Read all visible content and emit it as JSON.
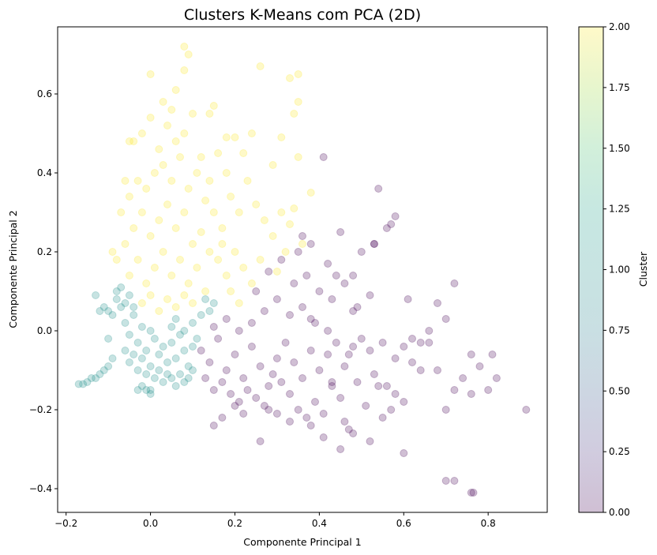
{
  "chart_data": {
    "type": "scatter",
    "title": "Clusters K-Means com PCA (2D)",
    "xlabel": "Componente Principal 1",
    "ylabel": "Componente Principal 2",
    "xlim": [
      -0.22,
      0.94
    ],
    "ylim": [
      -0.46,
      0.77
    ],
    "xticks": [
      -0.2,
      0.0,
      0.2,
      0.4,
      0.6,
      0.8
    ],
    "xtick_labels": [
      "−0.2",
      "0.0",
      "0.2",
      "0.4",
      "0.6",
      "0.8"
    ],
    "yticks": [
      -0.4,
      -0.2,
      0.0,
      0.2,
      0.4,
      0.6
    ],
    "ytick_labels": [
      "−0.4",
      "−0.2",
      "0.0",
      "0.2",
      "0.4",
      "0.6"
    ],
    "grid": false,
    "marker_alpha": 0.25,
    "colormap": "viridis",
    "colorbar": {
      "label": "Cluster",
      "range": [
        0.0,
        2.0
      ],
      "ticks": [
        0.0,
        0.25,
        0.5,
        0.75,
        1.0,
        1.25,
        1.5,
        1.75,
        2.0
      ],
      "tick_labels": [
        "0.00",
        "0.25",
        "0.50",
        "0.75",
        "1.00",
        "1.25",
        "1.50",
        "1.75",
        "2.00"
      ]
    },
    "series": [
      {
        "cluster": 0,
        "color": "#440154",
        "points": [
          [
            0.12,
            -0.05
          ],
          [
            0.14,
            -0.08
          ],
          [
            0.16,
            -0.02
          ],
          [
            0.18,
            -0.1
          ],
          [
            0.2,
            -0.06
          ],
          [
            0.22,
            -0.12
          ],
          [
            0.24,
            -0.04
          ],
          [
            0.26,
            -0.09
          ],
          [
            0.28,
            -0.14
          ],
          [
            0.3,
            -0.07
          ],
          [
            0.13,
            -0.12
          ],
          [
            0.15,
            -0.15
          ],
          [
            0.17,
            -0.13
          ],
          [
            0.19,
            -0.16
          ],
          [
            0.21,
            -0.18
          ],
          [
            0.23,
            -0.15
          ],
          [
            0.25,
            -0.17
          ],
          [
            0.27,
            -0.19
          ],
          [
            0.29,
            -0.11
          ],
          [
            0.31,
            -0.13
          ],
          [
            0.15,
            0.01
          ],
          [
            0.18,
            0.03
          ],
          [
            0.21,
            0.0
          ],
          [
            0.24,
            0.02
          ],
          [
            0.27,
            0.05
          ],
          [
            0.3,
            0.08
          ],
          [
            0.33,
            0.04
          ],
          [
            0.36,
            0.06
          ],
          [
            0.39,
            0.02
          ],
          [
            0.42,
            0.0
          ],
          [
            0.32,
            -0.03
          ],
          [
            0.34,
            -0.08
          ],
          [
            0.36,
            -0.12
          ],
          [
            0.38,
            -0.05
          ],
          [
            0.4,
            -0.1
          ],
          [
            0.42,
            -0.06
          ],
          [
            0.44,
            -0.03
          ],
          [
            0.46,
            -0.09
          ],
          [
            0.48,
            -0.04
          ],
          [
            0.5,
            -0.02
          ],
          [
            0.33,
            -0.16
          ],
          [
            0.35,
            -0.2
          ],
          [
            0.37,
            -0.22
          ],
          [
            0.39,
            -0.18
          ],
          [
            0.41,
            -0.21
          ],
          [
            0.43,
            -0.14
          ],
          [
            0.45,
            -0.17
          ],
          [
            0.47,
            -0.25
          ],
          [
            0.49,
            -0.13
          ],
          [
            0.51,
            -0.19
          ],
          [
            0.25,
            0.1
          ],
          [
            0.28,
            0.15
          ],
          [
            0.31,
            0.18
          ],
          [
            0.34,
            0.12
          ],
          [
            0.37,
            0.14
          ],
          [
            0.4,
            0.1
          ],
          [
            0.43,
            0.08
          ],
          [
            0.46,
            0.12
          ],
          [
            0.49,
            0.06
          ],
          [
            0.52,
            0.09
          ],
          [
            0.35,
            0.2
          ],
          [
            0.38,
            0.22
          ],
          [
            0.42,
            0.17
          ],
          [
            0.45,
            0.25
          ],
          [
            0.48,
            0.14
          ],
          [
            0.5,
            0.2
          ],
          [
            0.53,
            0.22
          ],
          [
            0.56,
            0.26
          ],
          [
            0.58,
            0.29
          ],
          [
            0.54,
            0.36
          ],
          [
            0.52,
            -0.05
          ],
          [
            0.55,
            -0.03
          ],
          [
            0.58,
            -0.07
          ],
          [
            0.6,
            -0.04
          ],
          [
            0.62,
            -0.02
          ],
          [
            0.64,
            -0.03
          ],
          [
            0.66,
            0.0
          ],
          [
            0.68,
            0.07
          ],
          [
            0.7,
            0.03
          ],
          [
            0.72,
            0.12
          ],
          [
            0.53,
            -0.11
          ],
          [
            0.56,
            -0.14
          ],
          [
            0.58,
            -0.16
          ],
          [
            0.6,
            -0.18
          ],
          [
            0.62,
            -0.08
          ],
          [
            0.64,
            -0.1
          ],
          [
            0.66,
            -0.03
          ],
          [
            0.68,
            -0.1
          ],
          [
            0.7,
            -0.2
          ],
          [
            0.72,
            -0.15
          ],
          [
            0.52,
            -0.28
          ],
          [
            0.55,
            -0.22
          ],
          [
            0.48,
            -0.26
          ],
          [
            0.45,
            -0.3
          ],
          [
            0.41,
            -0.27
          ],
          [
            0.38,
            -0.24
          ],
          [
            0.6,
            -0.31
          ],
          [
            0.26,
            -0.28
          ],
          [
            0.57,
            -0.2
          ],
          [
            0.46,
            -0.23
          ],
          [
            0.74,
            -0.12
          ],
          [
            0.76,
            -0.06
          ],
          [
            0.78,
            -0.09
          ],
          [
            0.8,
            -0.15
          ],
          [
            0.82,
            -0.12
          ],
          [
            0.81,
            -0.06
          ],
          [
            0.89,
            -0.2
          ],
          [
            0.76,
            -0.16
          ],
          [
            0.7,
            -0.38
          ],
          [
            0.72,
            -0.38
          ],
          [
            0.765,
            -0.41
          ],
          [
            0.76,
            -0.41
          ],
          [
            0.53,
            0.22
          ],
          [
            0.57,
            0.27
          ],
          [
            0.48,
            0.05
          ],
          [
            0.44,
            0.14
          ],
          [
            0.36,
            0.24
          ],
          [
            0.41,
            0.44
          ],
          [
            0.38,
            0.03
          ],
          [
            0.3,
            -0.21
          ],
          [
            0.2,
            -0.19
          ],
          [
            0.17,
            -0.22
          ],
          [
            0.22,
            -0.21
          ],
          [
            0.28,
            -0.2
          ],
          [
            0.15,
            -0.24
          ],
          [
            0.33,
            -0.23
          ],
          [
            0.43,
            -0.13
          ],
          [
            0.54,
            -0.14
          ],
          [
            0.47,
            -0.06
          ],
          [
            0.61,
            0.08
          ]
        ]
      },
      {
        "cluster": 1,
        "color": "#21918c",
        "points": [
          [
            -0.08,
            0.1
          ],
          [
            -0.07,
            0.06
          ],
          [
            -0.06,
            0.02
          ],
          [
            -0.05,
            -0.01
          ],
          [
            -0.04,
            0.04
          ],
          [
            -0.03,
            -0.03
          ],
          [
            -0.02,
            0.01
          ],
          [
            -0.01,
            -0.05
          ],
          [
            0.0,
            0.0
          ],
          [
            0.01,
            -0.02
          ],
          [
            0.02,
            -0.06
          ],
          [
            0.03,
            -0.04
          ],
          [
            0.04,
            -0.08
          ],
          [
            0.05,
            -0.03
          ],
          [
            0.06,
            -0.07
          ],
          [
            0.07,
            -0.01
          ],
          [
            0.08,
            -0.05
          ],
          [
            0.09,
            -0.09
          ],
          [
            0.1,
            -0.04
          ],
          [
            0.11,
            -0.02
          ],
          [
            -0.06,
            -0.05
          ],
          [
            -0.05,
            -0.08
          ],
          [
            -0.04,
            -0.06
          ],
          [
            -0.03,
            -0.1
          ],
          [
            -0.02,
            -0.07
          ],
          [
            -0.01,
            -0.11
          ],
          [
            0.0,
            -0.09
          ],
          [
            0.01,
            -0.12
          ],
          [
            0.02,
            -0.1
          ],
          [
            0.03,
            -0.13
          ],
          [
            -0.09,
            -0.07
          ],
          [
            -0.1,
            -0.09
          ],
          [
            -0.11,
            -0.1
          ],
          [
            -0.12,
            -0.11
          ],
          [
            -0.13,
            -0.12
          ],
          [
            -0.14,
            -0.12
          ],
          [
            -0.15,
            -0.13
          ],
          [
            -0.16,
            -0.135
          ],
          [
            -0.17,
            -0.135
          ],
          [
            -0.13,
            0.09
          ],
          [
            -0.08,
            0.08
          ],
          [
            -0.07,
            0.11
          ],
          [
            -0.06,
            0.07
          ],
          [
            -0.05,
            0.09
          ],
          [
            -0.04,
            0.06
          ],
          [
            -0.09,
            0.04
          ],
          [
            -0.1,
            0.05
          ],
          [
            -0.11,
            0.06
          ],
          [
            -0.12,
            0.05
          ],
          [
            -0.1,
            -0.02
          ],
          [
            0.04,
            -0.11
          ],
          [
            0.05,
            -0.12
          ],
          [
            0.07,
            -0.11
          ],
          [
            0.08,
            -0.13
          ],
          [
            0.0,
            -0.15
          ],
          [
            -0.01,
            -0.15
          ],
          [
            0.06,
            -0.14
          ],
          [
            0.09,
            -0.12
          ],
          [
            -0.03,
            -0.15
          ],
          [
            0.1,
            -0.1
          ],
          [
            -0.0,
            -0.16
          ],
          [
            -0.02,
            -0.14
          ],
          [
            0.05,
            0.01
          ],
          [
            0.06,
            0.03
          ],
          [
            0.08,
            0.0
          ],
          [
            0.1,
            0.02
          ],
          [
            0.12,
            0.04
          ],
          [
            0.14,
            0.05
          ],
          [
            0.15,
            0.07
          ],
          [
            0.13,
            0.08
          ]
        ]
      },
      {
        "cluster": 2,
        "color": "#fde725",
        "points": [
          [
            -0.05,
            0.14
          ],
          [
            -0.03,
            0.18
          ],
          [
            -0.01,
            0.12
          ],
          [
            0.01,
            0.16
          ],
          [
            0.03,
            0.2
          ],
          [
            0.05,
            0.14
          ],
          [
            0.07,
            0.18
          ],
          [
            0.09,
            0.12
          ],
          [
            0.11,
            0.16
          ],
          [
            0.13,
            0.1
          ],
          [
            -0.06,
            0.22
          ],
          [
            -0.04,
            0.26
          ],
          [
            -0.02,
            0.3
          ],
          [
            0.0,
            0.24
          ],
          [
            0.02,
            0.28
          ],
          [
            0.04,
            0.32
          ],
          [
            0.06,
            0.26
          ],
          [
            0.08,
            0.3
          ],
          [
            0.1,
            0.22
          ],
          [
            0.12,
            0.25
          ],
          [
            -0.05,
            0.34
          ],
          [
            -0.03,
            0.38
          ],
          [
            -0.01,
            0.36
          ],
          [
            0.01,
            0.4
          ],
          [
            0.03,
            0.42
          ],
          [
            0.05,
            0.38
          ],
          [
            0.07,
            0.44
          ],
          [
            0.09,
            0.36
          ],
          [
            0.11,
            0.4
          ],
          [
            0.13,
            0.33
          ],
          [
            -0.04,
            0.48
          ],
          [
            -0.02,
            0.5
          ],
          [
            0.0,
            0.54
          ],
          [
            0.02,
            0.46
          ],
          [
            0.04,
            0.52
          ],
          [
            0.06,
            0.48
          ],
          [
            0.08,
            0.5
          ],
          [
            0.1,
            0.55
          ],
          [
            0.12,
            0.44
          ],
          [
            0.14,
            0.38
          ],
          [
            0.15,
            0.3
          ],
          [
            0.17,
            0.26
          ],
          [
            0.19,
            0.34
          ],
          [
            0.21,
            0.3
          ],
          [
            0.23,
            0.38
          ],
          [
            0.25,
            0.32
          ],
          [
            0.27,
            0.28
          ],
          [
            0.29,
            0.24
          ],
          [
            0.31,
            0.3
          ],
          [
            0.33,
            0.27
          ],
          [
            0.16,
            0.18
          ],
          [
            0.18,
            0.14
          ],
          [
            0.2,
            0.2
          ],
          [
            0.22,
            0.16
          ],
          [
            0.24,
            0.12
          ],
          [
            0.26,
            0.18
          ],
          [
            0.14,
            0.2
          ],
          [
            0.17,
            0.22
          ],
          [
            0.19,
            0.1
          ],
          [
            0.21,
            0.07
          ],
          [
            0.0,
            0.65
          ],
          [
            0.06,
            0.61
          ],
          [
            0.08,
            0.66
          ],
          [
            0.09,
            0.7
          ],
          [
            0.08,
            0.72
          ],
          [
            0.05,
            0.56
          ],
          [
            0.14,
            0.55
          ],
          [
            0.15,
            0.57
          ],
          [
            0.2,
            0.49
          ],
          [
            0.18,
            0.49
          ],
          [
            0.22,
            0.45
          ],
          [
            0.24,
            0.5
          ],
          [
            0.26,
            0.67
          ],
          [
            0.29,
            0.42
          ],
          [
            0.31,
            0.49
          ],
          [
            0.33,
            0.64
          ],
          [
            0.35,
            0.65
          ],
          [
            0.35,
            0.58
          ],
          [
            0.34,
            0.55
          ],
          [
            0.35,
            0.44
          ],
          [
            0.38,
            0.35
          ],
          [
            0.34,
            0.31
          ],
          [
            0.36,
            0.22
          ],
          [
            0.32,
            0.2
          ],
          [
            0.3,
            0.15
          ],
          [
            -0.08,
            0.18
          ],
          [
            -0.09,
            0.2
          ],
          [
            -0.07,
            0.3
          ],
          [
            -0.06,
            0.38
          ],
          [
            -0.05,
            0.48
          ],
          [
            0.02,
            0.05
          ],
          [
            0.04,
            0.08
          ],
          [
            0.06,
            0.06
          ],
          [
            0.08,
            0.09
          ],
          [
            0.1,
            0.07
          ],
          [
            -0.02,
            0.07
          ],
          [
            0.0,
            0.09
          ],
          [
            0.03,
            0.58
          ],
          [
            0.16,
            0.45
          ],
          [
            0.18,
            0.4
          ]
        ]
      }
    ]
  }
}
